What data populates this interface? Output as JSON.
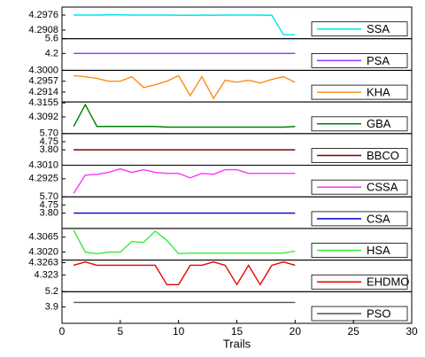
{
  "chart_data": [
    {
      "type": "line",
      "x": [
        1,
        2,
        3,
        4,
        5,
        6,
        7,
        8,
        9,
        10,
        11,
        12,
        13,
        14,
        15,
        16,
        17,
        18,
        19,
        20
      ],
      "xlim": [
        0,
        30
      ],
      "ylim": [
        4.2869,
        4.3012
      ],
      "yticks": [
        4.2976,
        4.2908
      ],
      "series": [
        {
          "name": "SSA",
          "color": "#00e5ee",
          "values": [
            4.2976,
            4.2976,
            4.2976,
            4.2977,
            4.2977,
            4.2976,
            4.2976,
            4.2976,
            4.2976,
            4.2975,
            4.2975,
            4.2976,
            4.2975,
            4.2976,
            4.2976,
            4.2976,
            4.2976,
            4.2975,
            4.2887,
            4.2887
          ]
        }
      ]
    },
    {
      "type": "line",
      "x": [
        1,
        2,
        3,
        4,
        5,
        6,
        7,
        8,
        9,
        10,
        11,
        12,
        13,
        14,
        15,
        16,
        17,
        18,
        19,
        20
      ],
      "xlim": [
        0,
        30
      ],
      "ylim": [
        2.6,
        5.6
      ],
      "yticks": [
        5.6,
        4.2
      ],
      "series": [
        {
          "name": "PSA",
          "color": "#9b30ff",
          "values": [
            4.2,
            4.2,
            4.2,
            4.2,
            4.2,
            4.2,
            4.2,
            4.2,
            4.2,
            4.2,
            4.2,
            4.2,
            4.2,
            4.2,
            4.2,
            4.2,
            4.2,
            4.2,
            4.2,
            4.2
          ]
        }
      ]
    },
    {
      "type": "line",
      "x": [
        1,
        2,
        3,
        4,
        5,
        6,
        7,
        8,
        9,
        10,
        11,
        12,
        13,
        14,
        15,
        16,
        17,
        18,
        19,
        20
      ],
      "xlim": [
        0,
        30
      ],
      "ylim": [
        4.2875,
        4.3
      ],
      "yticks": [
        {
          "value": 4.3,
          "label": "4.3000"
        },
        4.2957,
        4.2914
      ],
      "series": [
        {
          "name": "KHA",
          "color": "#ff8c1a",
          "values": [
            4.2979,
            4.2975,
            4.2968,
            4.2957,
            4.2957,
            4.2975,
            4.2932,
            4.2943,
            4.2957,
            4.2979,
            4.29,
            4.2975,
            4.2889,
            4.2961,
            4.2953,
            4.2961,
            4.295,
            4.2964,
            4.2975,
            4.2953
          ]
        }
      ]
    },
    {
      "type": "line",
      "x": [
        1,
        2,
        3,
        4,
        5,
        6,
        7,
        8,
        9,
        10,
        11,
        12,
        13,
        14,
        15,
        16,
        17,
        18,
        19,
        20
      ],
      "xlim": [
        0,
        30
      ],
      "ylim": [
        4.3017,
        4.3159
      ],
      "yticks": [
        4.3155,
        4.3092
      ],
      "series": [
        {
          "name": "GBA",
          "color": "#008000",
          "values": [
            4.3049,
            4.3147,
            4.3049,
            4.3049,
            4.3049,
            4.3049,
            4.3049,
            4.3049,
            4.3046,
            4.3046,
            4.3046,
            4.3046,
            4.3046,
            4.3046,
            4.3046,
            4.3046,
            4.3046,
            4.3046,
            4.3046,
            4.3049
          ]
        }
      ]
    },
    {
      "type": "line",
      "x": [
        1,
        2,
        3,
        4,
        5,
        6,
        7,
        8,
        9,
        10,
        11,
        12,
        13,
        14,
        15,
        16,
        17,
        18,
        19,
        20
      ],
      "xlim": [
        0,
        30
      ],
      "ylim": [
        2.0,
        5.7
      ],
      "yticks": [
        {
          "value": 5.7,
          "label": "5.70"
        },
        4.75,
        {
          "value": 3.8,
          "label": "3.80"
        }
      ],
      "series": [
        {
          "name": "BBCO",
          "color": "#800000",
          "values": [
            3.8,
            3.8,
            3.8,
            3.8,
            3.8,
            3.8,
            3.8,
            3.8,
            3.8,
            3.8,
            3.8,
            3.8,
            3.8,
            3.8,
            3.8,
            3.8,
            3.8,
            3.8,
            3.8,
            3.8
          ]
        }
      ]
    },
    {
      "type": "line",
      "x": [
        1,
        2,
        3,
        4,
        5,
        6,
        7,
        8,
        9,
        10,
        11,
        12,
        13,
        14,
        15,
        16,
        17,
        18,
        19,
        20
      ],
      "xlim": [
        0,
        30
      ],
      "ylim": [
        4.2812,
        4.301
      ],
      "yticks": [
        {
          "value": 4.301,
          "label": "4.3010"
        },
        4.2925
      ],
      "series": [
        {
          "name": "CSSA",
          "color": "#ff33ff",
          "values": [
            4.2834,
            4.2948,
            4.2953,
            4.2965,
            4.2987,
            4.2965,
            4.2982,
            4.2965,
            4.2959,
            4.2959,
            4.2931,
            4.2959,
            4.2953,
            4.2982,
            4.2982,
            4.2959,
            4.2959,
            4.2959,
            4.2959,
            4.2959
          ]
        }
      ]
    },
    {
      "type": "line",
      "x": [
        1,
        2,
        3,
        4,
        5,
        6,
        7,
        8,
        9,
        10,
        11,
        12,
        13,
        14,
        15,
        16,
        17,
        18,
        19,
        20
      ],
      "xlim": [
        0,
        30
      ],
      "ylim": [
        2.0,
        5.7
      ],
      "yticks": [
        {
          "value": 5.7,
          "label": "5.70"
        },
        4.75,
        {
          "value": 3.8,
          "label": "3.80"
        }
      ],
      "series": [
        {
          "name": "CSA",
          "color": "#0000cc",
          "values": [
            3.8,
            3.8,
            3.8,
            3.8,
            3.8,
            3.8,
            3.8,
            3.8,
            3.8,
            3.8,
            3.8,
            3.8,
            3.8,
            3.8,
            3.8,
            3.8,
            3.8,
            3.8,
            3.8,
            3.8
          ]
        }
      ]
    },
    {
      "type": "line",
      "x": [
        1,
        2,
        3,
        4,
        5,
        6,
        7,
        8,
        9,
        10,
        11,
        12,
        13,
        14,
        15,
        16,
        17,
        18,
        19,
        20
      ],
      "xlim": [
        0,
        30
      ],
      "ylim": [
        4.2996,
        4.3091
      ],
      "yticks": [
        4.3065,
        {
          "value": 4.302,
          "label": "4.3020"
        }
      ],
      "series": [
        {
          "name": "HSA",
          "color": "#33ee33",
          "values": [
            4.3086,
            4.302,
            4.3015,
            4.302,
            4.302,
            4.3052,
            4.3049,
            4.3083,
            4.3055,
            4.3015,
            4.3017,
            4.3017,
            4.3017,
            4.3017,
            4.3017,
            4.3017,
            4.3017,
            4.3017,
            4.3017,
            4.3023
          ]
        }
      ]
    },
    {
      "type": "line",
      "x": [
        1,
        2,
        3,
        4,
        5,
        6,
        7,
        8,
        9,
        10,
        11,
        12,
        13,
        14,
        15,
        16,
        17,
        18,
        19,
        20
      ],
      "xlim": [
        0,
        30
      ],
      "ylim": [
        4.3185,
        4.327
      ],
      "yticks": [
        4.3263,
        4.323
      ],
      "series": [
        {
          "name": "EHDMO",
          "color": "#ee0000",
          "values": [
            4.3256,
            4.3265,
            4.3256,
            4.3256,
            4.3256,
            4.3256,
            4.3256,
            4.3256,
            4.3204,
            4.3204,
            4.3256,
            4.3256,
            4.3265,
            4.3256,
            4.3204,
            4.3256,
            4.3204,
            4.3256,
            4.3265,
            4.3256
          ]
        }
      ]
    },
    {
      "type": "line",
      "x": [
        1,
        2,
        3,
        4,
        5,
        6,
        7,
        8,
        9,
        10,
        11,
        12,
        13,
        14,
        15,
        16,
        17,
        18,
        19,
        20
      ],
      "xlim": [
        0,
        30
      ],
      "ylim": [
        2.5,
        5.2
      ],
      "yticks": [
        5.2,
        3.9
      ],
      "xticks": [
        0,
        5,
        10,
        15,
        20,
        25,
        30
      ],
      "x_label": "Trails",
      "series": [
        {
          "name": "PSO",
          "color": "#555555",
          "values": [
            4.28,
            4.28,
            4.28,
            4.28,
            4.28,
            4.28,
            4.28,
            4.28,
            4.28,
            4.28,
            4.28,
            4.28,
            4.28,
            4.28,
            4.28,
            4.28,
            4.28,
            4.28,
            4.28,
            4.28
          ]
        }
      ]
    }
  ]
}
